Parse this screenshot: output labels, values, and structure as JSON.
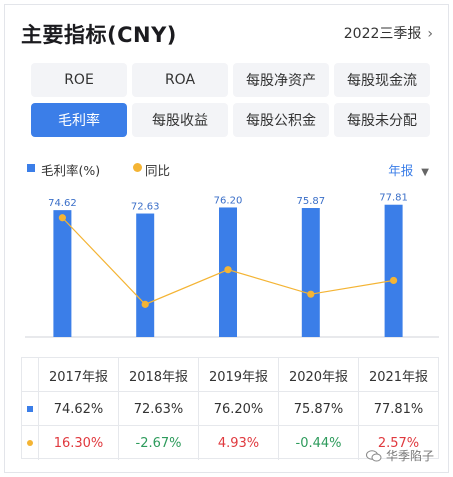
{
  "header": {
    "title": "主要指标(CNY)",
    "period": "2022三季报",
    "chevron_icon": "chevron-right-icon"
  },
  "tabs": [
    {
      "label": "ROE",
      "active": false
    },
    {
      "label": "ROA",
      "active": false
    },
    {
      "label": "每股净资产",
      "active": false
    },
    {
      "label": "每股现金流",
      "active": false
    },
    {
      "label": "毛利率",
      "active": true
    },
    {
      "label": "每股收益",
      "active": false
    },
    {
      "label": "每股公积金",
      "active": false
    },
    {
      "label": "每股未分配",
      "active": false
    }
  ],
  "legend": {
    "bar_label": "毛利率(%)",
    "line_label": "同比",
    "frequency": "年报"
  },
  "colors": {
    "accent": "#3b7ee8",
    "line": "#f4b434",
    "negative": "#2e9b5c",
    "positive": "#e0393e"
  },
  "chart_data": {
    "type": "bar",
    "categories": [
      "2017年报",
      "2018年报",
      "2019年报",
      "2020年报",
      "2021年报"
    ],
    "series": [
      {
        "name": "毛利率(%)",
        "type": "bar",
        "values": [
          74.62,
          72.63,
          76.2,
          75.87,
          77.81
        ]
      },
      {
        "name": "同比",
        "type": "line",
        "values": [
          16.3,
          -2.67,
          4.93,
          -0.44,
          2.57
        ]
      }
    ],
    "data_labels": [
      "74.62",
      "72.63",
      "76.20",
      "75.87",
      "77.81"
    ]
  },
  "table": {
    "headers": [
      "2017年报",
      "2018年报",
      "2019年报",
      "2020年报",
      "2021年报"
    ],
    "margin_row": [
      "74.62%",
      "72.63%",
      "76.20%",
      "75.87%",
      "77.81%"
    ],
    "yoy_row": [
      "16.30%",
      "-2.67%",
      "4.93%",
      "-0.44%",
      "2.57%"
    ]
  },
  "watermark": {
    "text": "华季陷子",
    "icon": "wechat-icon"
  }
}
